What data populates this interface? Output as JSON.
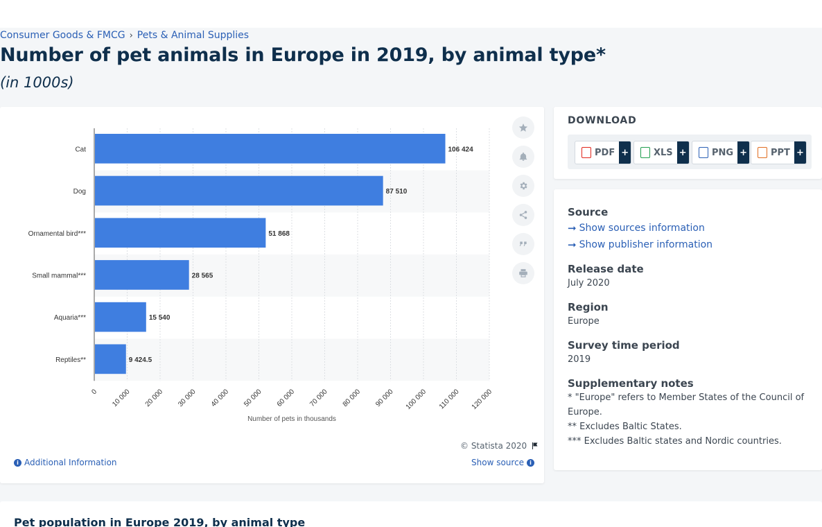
{
  "breadcrumb": {
    "item1": "Consumer Goods & FMCG",
    "separator": "›",
    "item2": "Pets & Animal Supplies"
  },
  "page_title": "Number of pet animals in Europe in 2019, by animal type*",
  "page_subtitle": "(in 1000s)",
  "chart_data": {
    "type": "bar",
    "orientation": "horizontal",
    "categories": [
      "Cat",
      "Dog",
      "Ornamental bird***",
      "Small mammal***",
      "Aquaria***",
      "Reptiles**"
    ],
    "values": [
      106424,
      87510,
      51868,
      28565,
      15540,
      9424.5
    ],
    "data_labels": [
      "106 424",
      "87 510",
      "51 868",
      "28 565",
      "15 540",
      "9 424.5"
    ],
    "xlabel": "Number of pets in thousands",
    "ylabel": "",
    "xlim": [
      0,
      120000
    ],
    "ticks": [
      "0",
      "10 000",
      "20 000",
      "30 000",
      "40 000",
      "50 000",
      "60 000",
      "70 000",
      "80 000",
      "90 000",
      "100 000",
      "110 000",
      "120 000"
    ],
    "grid": true,
    "bar_color": "#3f7ee0"
  },
  "chart_footer": {
    "copyright": "© Statista 2020",
    "additional_info": "Additional Information",
    "show_source": "Show source"
  },
  "tools": {
    "star": "star-icon",
    "bell": "bell-icon",
    "settings": "gear-icon",
    "share": "share-icon",
    "cite": "quote-icon",
    "print": "print-icon"
  },
  "download": {
    "title": "DOWNLOAD",
    "buttons": [
      {
        "label": "PDF",
        "plus": "+",
        "color": "#e1251b"
      },
      {
        "label": "XLS",
        "plus": "+",
        "color": "#1f9e4e"
      },
      {
        "label": "PNG",
        "plus": "+",
        "color": "#2a5fb5"
      },
      {
        "label": "PPT",
        "plus": "+",
        "color": "#e06c1f"
      }
    ]
  },
  "info": {
    "source_heading": "Source",
    "show_sources": "Show sources information",
    "show_publisher": "Show publisher information",
    "release_heading": "Release date",
    "release_value": "July 2020",
    "region_heading": "Region",
    "region_value": "Europe",
    "period_heading": "Survey time period",
    "period_value": "2019",
    "notes_heading": "Supplementary notes",
    "note1": "* \"Europe\" refers to Member States of the Council of Europe.",
    "note2": "** Excludes Baltic States.",
    "note3": "*** Excludes Baltic states and Nordic countries."
  },
  "bottom_section": {
    "title": "Pet population in Europe 2019, by animal type"
  }
}
